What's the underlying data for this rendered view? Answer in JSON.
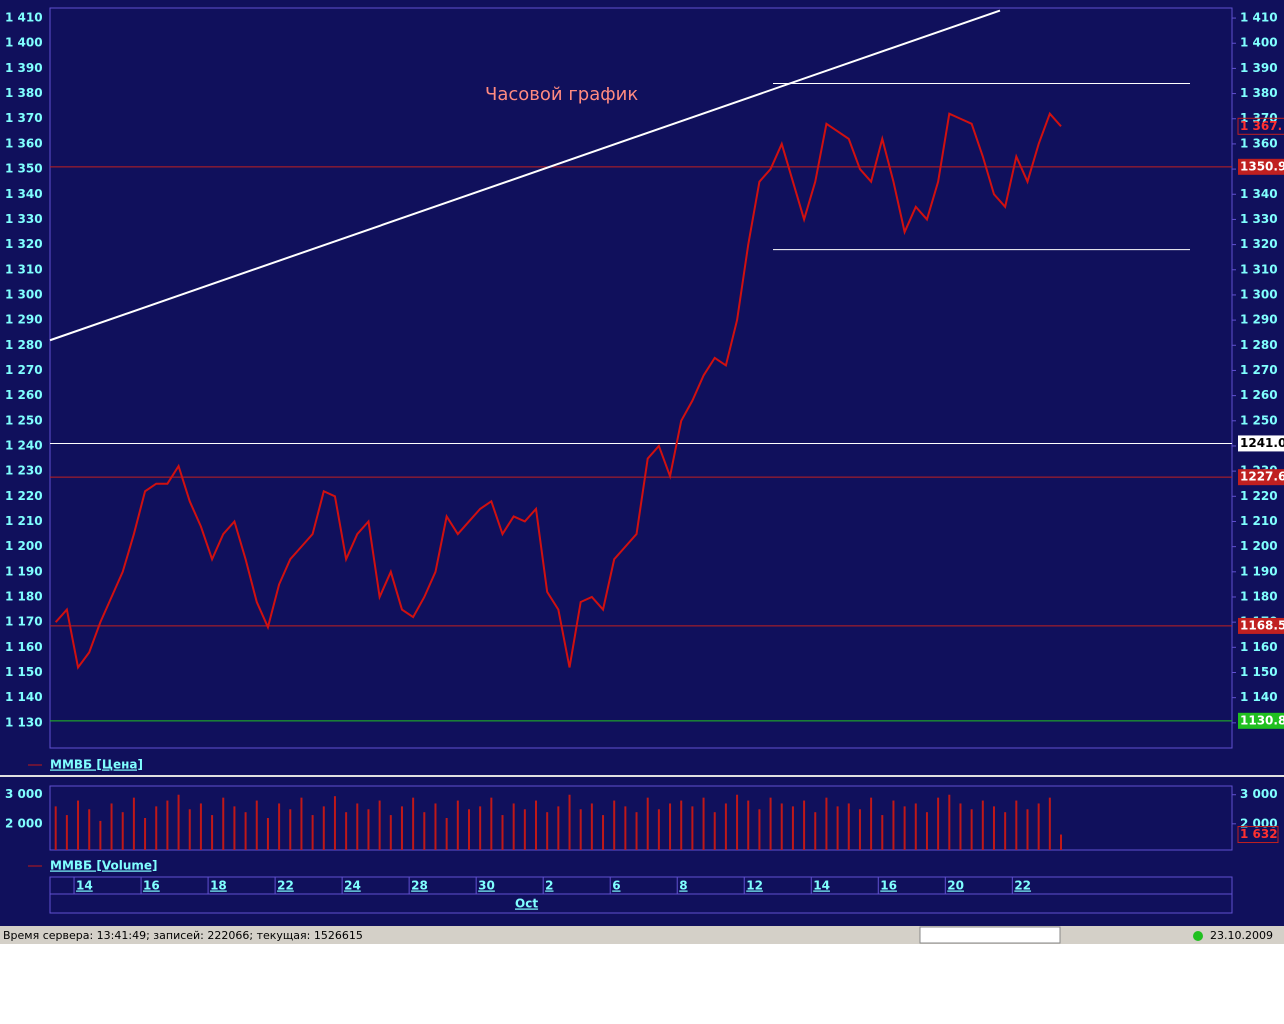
{
  "chart_data": [
    {
      "type": "line",
      "annotation": "Часовой график",
      "xlabel": "Oct",
      "categories": [
        null,
        null,
        "14",
        null,
        null,
        null,
        null,
        null,
        "16",
        null,
        null,
        null,
        null,
        null,
        "18",
        null,
        null,
        null,
        null,
        null,
        "22",
        null,
        null,
        null,
        null,
        null,
        "24",
        null,
        null,
        null,
        null,
        null,
        "28",
        null,
        null,
        null,
        null,
        null,
        "30",
        null,
        null,
        null,
        null,
        null,
        "2",
        null,
        null,
        null,
        null,
        null,
        "6",
        null,
        null,
        null,
        null,
        null,
        "8",
        null,
        null,
        null,
        null,
        null,
        "12",
        null,
        null,
        null,
        null,
        null,
        "14",
        null,
        null,
        null,
        null,
        null,
        "16",
        null,
        null,
        null,
        null,
        null,
        "20",
        null,
        null,
        null,
        null,
        null,
        "22",
        null,
        null,
        null,
        null
      ],
      "series": [
        {
          "name": "ММВБ [Цена]",
          "color": "#d01010",
          "values": [
            1170,
            1175,
            1152,
            1158,
            1170,
            1180,
            1190,
            1205,
            1222,
            1225,
            1225,
            1232,
            1218,
            1208,
            1195,
            1205,
            1210,
            1195,
            1178,
            1168,
            1185,
            1195,
            1200,
            1205,
            1222,
            1220,
            1195,
            1205,
            1210,
            1180,
            1190,
            1175,
            1172,
            1180,
            1190,
            1212,
            1205,
            1210,
            1215,
            1218,
            1205,
            1212,
            1210,
            1215,
            1182,
            1175,
            1152,
            1178,
            1180,
            1175,
            1195,
            1200,
            1205,
            1235,
            1240,
            1228,
            1250,
            1258,
            1268,
            1275,
            1272,
            1290,
            1320,
            1345,
            1350,
            1360,
            1345,
            1330,
            1345,
            1368,
            1365,
            1362,
            1350,
            1345,
            1362,
            1345,
            1325,
            1335,
            1330,
            1345,
            1372,
            1370,
            1368,
            1355,
            1340,
            1335,
            1355,
            1345,
            1360,
            1372,
            1367
          ]
        }
      ],
      "ylim": [
        1120,
        1414
      ],
      "yticks": [
        {
          "value": 1130,
          "label": "1 130"
        },
        {
          "value": 1140,
          "label": "1 140"
        },
        {
          "value": 1150,
          "label": "1 150"
        },
        {
          "value": 1160,
          "label": "1 160"
        },
        {
          "value": 1170,
          "label": "1 170"
        },
        {
          "value": 1180,
          "label": "1 180"
        },
        {
          "value": 1190,
          "label": "1 190"
        },
        {
          "value": 1200,
          "label": "1 200"
        },
        {
          "value": 1210,
          "label": "1 210"
        },
        {
          "value": 1220,
          "label": "1 220"
        },
        {
          "value": 1230,
          "label": "1 230"
        },
        {
          "value": 1240,
          "label": "1 240"
        },
        {
          "value": 1250,
          "label": "1 250"
        },
        {
          "value": 1260,
          "label": "1 260"
        },
        {
          "value": 1270,
          "label": "1 270"
        },
        {
          "value": 1280,
          "label": "1 280"
        },
        {
          "value": 1290,
          "label": "1 290"
        },
        {
          "value": 1300,
          "label": "1 300"
        },
        {
          "value": 1310,
          "label": "1 310"
        },
        {
          "value": 1320,
          "label": "1 320"
        },
        {
          "value": 1330,
          "label": "1 330"
        },
        {
          "value": 1340,
          "label": "1 340"
        },
        {
          "value": 1350,
          "label": "1 350"
        },
        {
          "value": 1360,
          "label": "1 360"
        },
        {
          "value": 1370,
          "label": "1 370"
        },
        {
          "value": 1380,
          "label": "1 380"
        },
        {
          "value": 1390,
          "label": "1 390"
        },
        {
          "value": 1400,
          "label": "1 400"
        },
        {
          "value": 1410,
          "label": "1 410"
        }
      ],
      "levels": [
        {
          "value": 1350.9,
          "label": "1350.9",
          "color": "#c02020"
        },
        {
          "value": 1241.0,
          "label": "1241.0",
          "color": "#ffffff"
        },
        {
          "value": 1227.6,
          "label": "1227.6",
          "color": "#c02020"
        },
        {
          "value": 1168.5,
          "label": "1168.5",
          "color": "#c02020"
        },
        {
          "value": 1130.8,
          "label": "1130.8",
          "color": "#20c020"
        }
      ],
      "trend_lines": [
        {
          "values": [
            1282,
            1413
          ],
          "color": "#ffffff"
        },
        {
          "values": [
            1384,
            1384
          ],
          "color": "#ffffff"
        },
        {
          "values": [
            1318,
            1318
          ],
          "color": "#ffffff"
        }
      ],
      "last_value": {
        "value": 1367,
        "label": "1 367."
      }
    },
    {
      "type": "bar",
      "series": [
        {
          "name": "ММВБ [Volume]",
          "color": "#c01818",
          "values": [
            2600,
            2300,
            2800,
            2500,
            2100,
            2700,
            2400,
            2900,
            2200,
            2600,
            2800,
            3000,
            2500,
            2700,
            2300,
            2900,
            2600,
            2400,
            2800,
            2200,
            2700,
            2500,
            2900,
            2300,
            2600,
            2950,
            2400,
            2700,
            2500,
            2800,
            2300,
            2600,
            2900,
            2400,
            2700,
            2200,
            2800,
            2500,
            2600,
            2900,
            2300,
            2700,
            2500,
            2800,
            2400,
            2600,
            3000,
            2500,
            2700,
            2300,
            2800,
            2600,
            2400,
            2900,
            2500,
            2700,
            2800,
            2600,
            2900,
            2400,
            2700,
            3000,
            2800,
            2500,
            2900,
            2700,
            2600,
            2800,
            2400,
            2900,
            2600,
            2700,
            2500,
            2900,
            2300,
            2800,
            2600,
            2700,
            2400,
            2900,
            3000,
            2700,
            2500,
            2800,
            2600,
            2400,
            2800,
            2500,
            2700,
            2900,
            1632
          ]
        }
      ],
      "ylim": [
        1100,
        3300
      ],
      "yticks": [
        {
          "value": 2000,
          "label": "2 000"
        },
        {
          "value": 3000,
          "label": "3 000"
        }
      ],
      "last_value": {
        "value": 1632,
        "label": "1 632"
      }
    }
  ],
  "status_bar": {
    "text": "Время сервера: 13:41:49; записей: 222066; текущая: 1526615",
    "date": "23.10.2009"
  }
}
